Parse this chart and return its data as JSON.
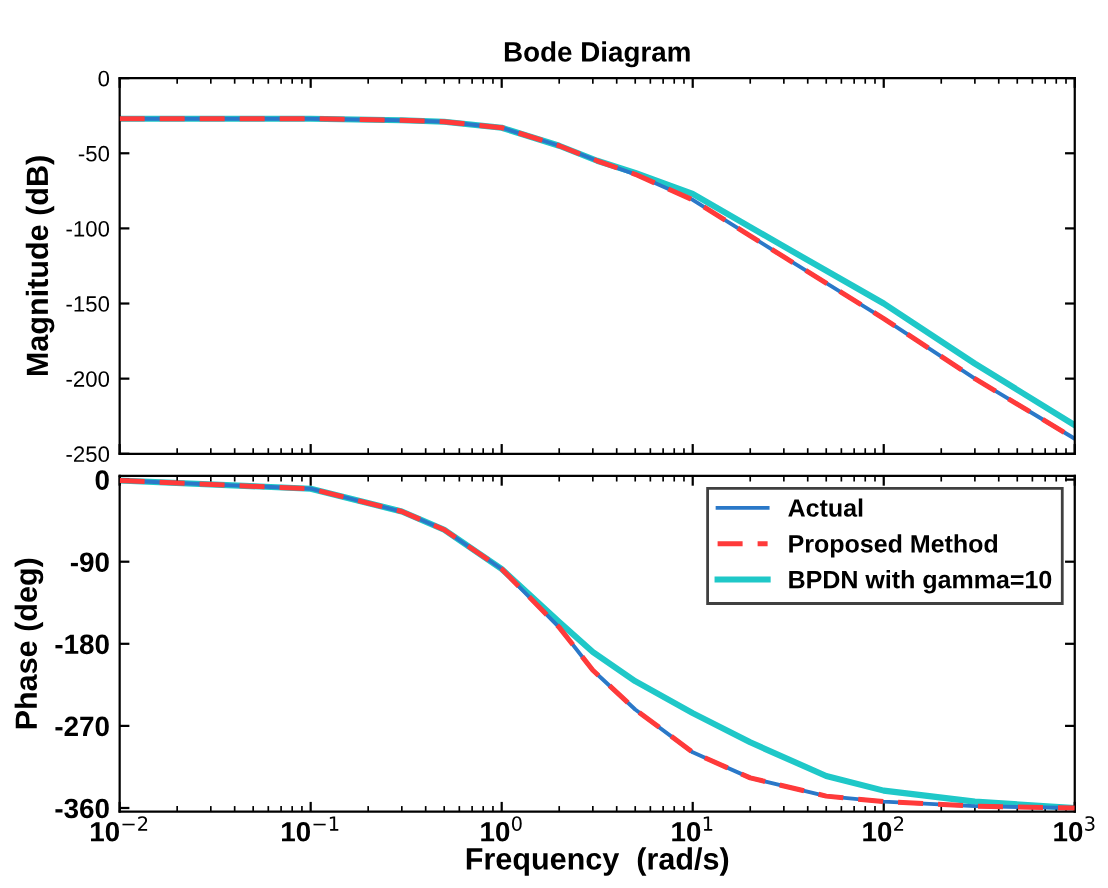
{
  "chart_data": [
    {
      "type": "line",
      "title": "Bode Diagram",
      "ylabel": "Magnitude (dB)",
      "log": "x",
      "tick_labels": "y",
      "xlim": [
        0.01,
        1000
      ],
      "xticks": [
        {
          "value": 0.01,
          "label": null
        },
        {
          "value": 0.1,
          "label": null
        },
        {
          "value": 1,
          "label": null
        },
        {
          "value": 10,
          "label": null
        },
        {
          "value": 100,
          "label": null
        },
        {
          "value": 1000,
          "label": null
        }
      ],
      "ylim": [
        -250,
        0
      ],
      "yticks": [
        0,
        -50,
        -100,
        -150,
        -200,
        -250
      ],
      "series": [
        {
          "color": "#2a78c8",
          "line_style": "solid",
          "x": [
            0.01,
            0.1,
            0.3,
            0.5,
            1,
            2,
            3.16,
            5,
            10,
            30,
            100,
            300,
            1000
          ],
          "values": [
            -27,
            -27,
            -28,
            -29,
            -33,
            -45,
            -55,
            -64,
            -81,
            -119,
            -160,
            -200,
            -240
          ]
        },
        {
          "color": "#ff3a3a",
          "line_style": "dashed",
          "x": [
            0.01,
            0.1,
            0.3,
            0.5,
            1,
            2,
            3.16,
            5,
            10,
            30,
            100,
            300,
            1000
          ],
          "values": [
            -27,
            -27,
            -28,
            -29,
            -33,
            -45,
            -55,
            -64,
            -81,
            -119,
            -160,
            -200,
            -240
          ]
        },
        {
          "color": "#1fc8c8",
          "line_style": "solid",
          "x": [
            0.01,
            0.1,
            0.3,
            0.5,
            1,
            2,
            3.16,
            5,
            10,
            30,
            100,
            300,
            1000
          ],
          "values": [
            -27,
            -27,
            -28,
            -29,
            -33,
            -45,
            -55,
            -63,
            -77,
            -112,
            -150,
            -190,
            -231
          ]
        }
      ]
    },
    {
      "type": "line",
      "xlabel": "Frequency  (rad/s)",
      "ylabel": "Phase (deg)",
      "log": "x",
      "legend": "top right",
      "xlim": [
        0.01,
        1000
      ],
      "xticks": [
        {
          "value": 0.01,
          "label": "10$^{−2}$"
        },
        {
          "value": 0.1,
          "label": "10$^{−1}$"
        },
        {
          "value": 1,
          "label": "10$^{0}$"
        },
        {
          "value": 10,
          "label": "10$^{1}$"
        },
        {
          "value": 100,
          "label": "10$^{2}$"
        },
        {
          "value": 1000,
          "label": "10$^{3}$"
        }
      ],
      "ylim": [
        -364,
        4
      ],
      "yticks": [
        0,
        -90,
        -180,
        -270,
        -360
      ],
      "series": [
        {
          "name": "Actual",
          "color": "#2a78c8",
          "line_style": "solid",
          "x": [
            0.01,
            0.1,
            0.3,
            0.5,
            1,
            2,
            3,
            5,
            10,
            20,
            50,
            100,
            300,
            1000
          ],
          "values": [
            -1,
            -10,
            -35,
            -55,
            -98,
            -162,
            -209,
            -252,
            -299,
            -327,
            -347,
            -353,
            -358,
            -360
          ]
        },
        {
          "name": "Proposed Method",
          "color": "#ff3a3a",
          "line_style": "dashed",
          "x": [
            0.01,
            0.1,
            0.3,
            0.5,
            1,
            2,
            3,
            5,
            10,
            20,
            50,
            100,
            300,
            1000
          ],
          "values": [
            -1,
            -10,
            -35,
            -55,
            -98,
            -162,
            -209,
            -252,
            -299,
            -327,
            -347,
            -353,
            -358,
            -360
          ]
        },
        {
          "name": "BPDN with gamma=10",
          "color": "#1fc8c8",
          "line_style": "solid",
          "x": [
            0.01,
            0.1,
            0.3,
            0.5,
            1,
            2,
            3,
            5,
            10,
            20,
            50,
            100,
            300,
            1000
          ],
          "values": [
            -1,
            -10,
            -35,
            -55,
            -98,
            -156,
            -189,
            -221,
            -256,
            -288,
            -325,
            -341,
            -353,
            -360
          ]
        }
      ]
    }
  ]
}
